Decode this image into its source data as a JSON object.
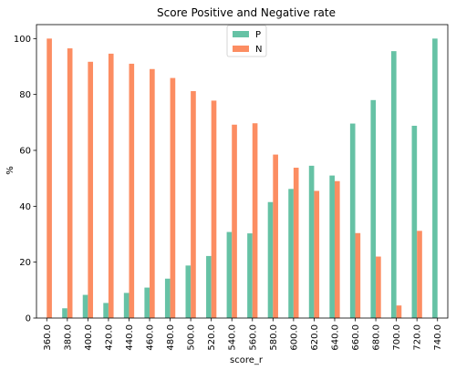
{
  "chart_data": {
    "type": "bar",
    "title": "Score Positive and Negative rate",
    "xlabel": "score_r",
    "ylabel": "%",
    "ylim": [
      0,
      105
    ],
    "yticks": [
      0,
      20,
      40,
      60,
      80,
      100
    ],
    "grid": false,
    "legend_placement": "top-center",
    "categories": [
      "360.0",
      "380.0",
      "400.0",
      "420.0",
      "440.0",
      "460.0",
      "480.0",
      "500.0",
      "520.0",
      "540.0",
      "560.0",
      "580.0",
      "600.0",
      "620.0",
      "640.0",
      "660.0",
      "680.0",
      "700.0",
      "720.0",
      "740.0"
    ],
    "series": [
      {
        "name": "P",
        "color": "#66c2a5",
        "values": [
          0,
          3.5,
          8.3,
          5.4,
          9.0,
          10.9,
          14.1,
          18.8,
          22.2,
          30.8,
          30.3,
          41.5,
          46.2,
          54.5,
          51.0,
          69.6,
          78.0,
          95.5,
          68.8,
          100
        ]
      },
      {
        "name": "N",
        "color": "#fc8d62",
        "values": [
          100,
          96.5,
          91.7,
          94.6,
          91.0,
          89.1,
          85.9,
          81.2,
          77.8,
          69.2,
          69.7,
          58.5,
          53.8,
          45.5,
          49.0,
          30.4,
          22.0,
          4.5,
          31.2,
          0
        ]
      }
    ]
  }
}
